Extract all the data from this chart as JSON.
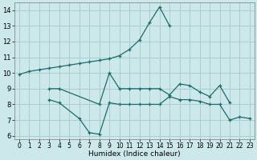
{
  "xlabel": "Humidex (Indice chaleur)",
  "background_color": "#cde8ea",
  "grid_color": "#aacdd0",
  "line_color": "#1a6b6b",
  "xlim": [
    -0.5,
    23.5
  ],
  "ylim": [
    5.8,
    14.5
  ],
  "yticks": [
    6,
    7,
    8,
    9,
    10,
    11,
    12,
    13,
    14
  ],
  "xticks": [
    0,
    1,
    2,
    3,
    4,
    5,
    6,
    7,
    8,
    9,
    10,
    11,
    12,
    13,
    14,
    15,
    16,
    17,
    18,
    19,
    20,
    21,
    22,
    23
  ],
  "series": [
    {
      "x": [
        0,
        1,
        2,
        3,
        4,
        5,
        6,
        7,
        8,
        9,
        10,
        11,
        12,
        13,
        14,
        15
      ],
      "y": [
        9.9,
        10.1,
        10.2,
        10.3,
        10.4,
        10.5,
        10.6,
        10.7,
        10.8,
        10.9,
        11.1,
        11.5,
        12.1,
        13.2,
        14.2,
        13.0
      ]
    },
    {
      "x": [
        3,
        4,
        8,
        9,
        10,
        11,
        12,
        13,
        14,
        15,
        16,
        17,
        18,
        19,
        20,
        21
      ],
      "y": [
        9.0,
        9.0,
        8.0,
        10.0,
        9.0,
        9.0,
        9.0,
        9.0,
        9.0,
        8.6,
        9.3,
        9.2,
        8.8,
        8.5,
        9.2,
        8.1
      ]
    },
    {
      "x": [
        3,
        4,
        6,
        7,
        8,
        9,
        10,
        11,
        12,
        13,
        14,
        15,
        16,
        17,
        18,
        19,
        20,
        21,
        22,
        23
      ],
      "y": [
        8.3,
        8.1,
        7.1,
        6.2,
        6.1,
        8.1,
        8.0,
        8.0,
        8.0,
        8.0,
        8.0,
        8.5,
        8.3,
        8.3,
        8.2,
        8.0,
        8.0,
        7.0,
        7.2,
        7.1
      ]
    }
  ]
}
